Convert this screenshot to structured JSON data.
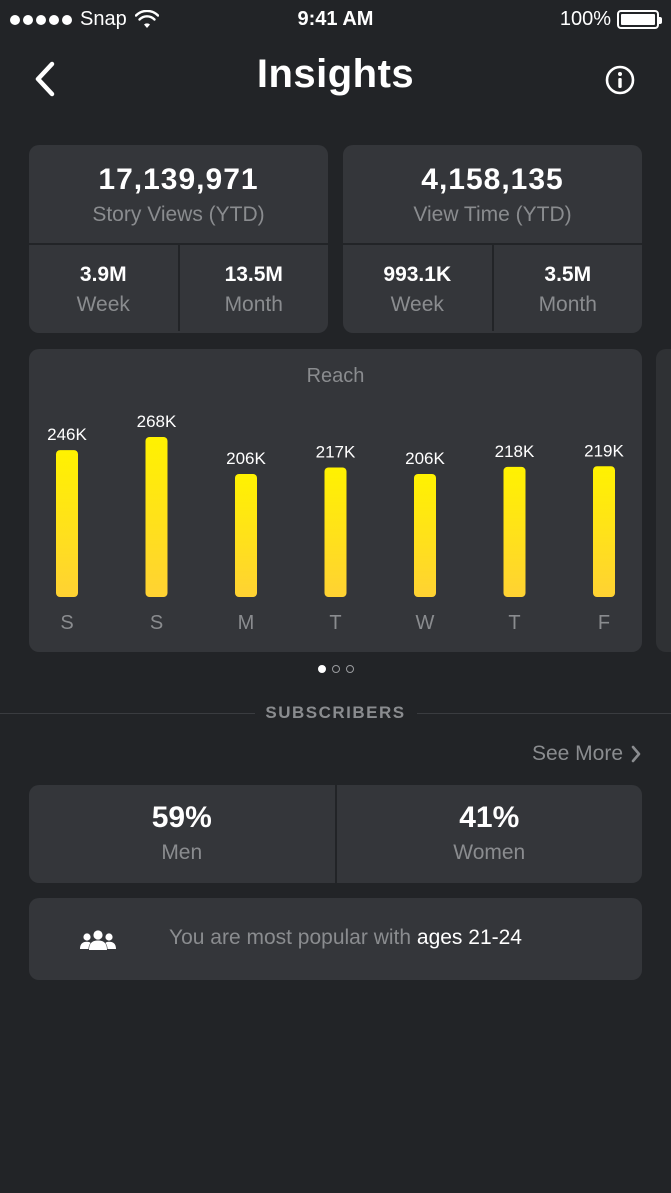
{
  "status_bar": {
    "carrier": "Snap",
    "time": "9:41 AM",
    "battery": "100%"
  },
  "nav": {
    "title": "Insights"
  },
  "story_views": {
    "total": "17,139,971",
    "label": "Story Views (YTD)",
    "week_value": "3.9M",
    "week_label": "Week",
    "month_value": "13.5M",
    "month_label": "Month"
  },
  "view_time": {
    "total": "4,158,135",
    "label": "View Time (YTD)",
    "week_value": "993.1K",
    "week_label": "Week",
    "month_value": "3.5M",
    "month_label": "Month"
  },
  "chart_data": {
    "type": "bar",
    "title": "Reach",
    "categories": [
      "S",
      "S",
      "M",
      "T",
      "W",
      "T",
      "F"
    ],
    "values": [
      246000,
      268000,
      206000,
      217000,
      206000,
      218000,
      219000
    ],
    "value_labels": [
      "246K",
      "268K",
      "206K",
      "217K",
      "206K",
      "218K",
      "219K"
    ],
    "colors": {
      "bar_top": "#fff200",
      "bar_bottom": "#ffd233"
    }
  },
  "pager": {
    "count": 3,
    "active": 1
  },
  "subscribers": {
    "section_title": "SUBSCRIBERS",
    "see_more": "See More",
    "men_pct": "59%",
    "men_label": "Men",
    "women_pct": "41%",
    "women_label": "Women",
    "age_prefix": "You are most popular with",
    "age_value": "ages 21-24"
  },
  "icons": {
    "back": "chevron-left-icon",
    "info": "info-icon",
    "see_more": "chevron-right-icon",
    "audience": "people-group-icon"
  }
}
